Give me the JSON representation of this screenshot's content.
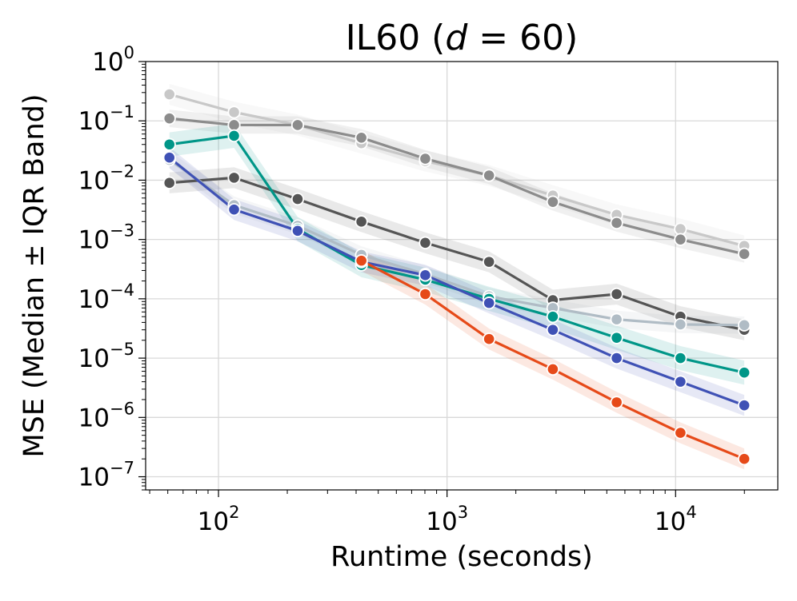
{
  "chart_data": {
    "type": "line",
    "title": "IL60 (",
    "title_var": "d",
    "title_eq": " = 60)",
    "xlabel": "Runtime (seconds)",
    "ylabel": "MSE (Median ± IQR Band)",
    "x_scale": "log",
    "y_scale": "log",
    "xlim": [
      48,
      28000
    ],
    "ylim": [
      6e-08,
      1.0
    ],
    "grid": true,
    "legend": "none",
    "x_ticks": [
      {
        "value": 100,
        "base": "10",
        "exp": "2"
      },
      {
        "value": 1000,
        "base": "10",
        "exp": "3"
      },
      {
        "value": 10000,
        "base": "10",
        "exp": "4"
      }
    ],
    "y_ticks": [
      {
        "value": 1,
        "base": "10",
        "exp": "0"
      },
      {
        "value": 0.1,
        "base": "10",
        "exp": "−1"
      },
      {
        "value": 0.01,
        "base": "10",
        "exp": "−2"
      },
      {
        "value": 0.001,
        "base": "10",
        "exp": "−3"
      },
      {
        "value": 0.0001,
        "base": "10",
        "exp": "−4"
      },
      {
        "value": 1e-05,
        "base": "10",
        "exp": "−5"
      },
      {
        "value": 1e-06,
        "base": "10",
        "exp": "−6"
      },
      {
        "value": 1e-07,
        "base": "10",
        "exp": "−7"
      }
    ],
    "x": [
      61,
      117,
      222,
      422,
      803,
      1527,
      2904,
      5522,
      10502,
      19971
    ],
    "series": [
      {
        "color": "#c8c8c8",
        "band": 1.5,
        "values": [
          0.28,
          0.14,
          0.085,
          0.042,
          0.021,
          0.012,
          0.0055,
          0.0026,
          0.0015,
          0.00078
        ]
      },
      {
        "color": "#8c8c8c",
        "band": 1.4,
        "values": [
          0.11,
          0.085,
          0.085,
          0.052,
          0.023,
          0.012,
          0.0043,
          0.0019,
          0.001,
          0.00057
        ]
      },
      {
        "color": "#555555",
        "band": 1.5,
        "values": [
          0.009,
          0.011,
          0.0048,
          0.002,
          0.00088,
          0.00042,
          9.5e-05,
          0.00012,
          5e-05,
          3e-05
        ]
      },
      {
        "color": "#b0bcc5",
        "band": 1.4,
        "values": [
          0.022,
          0.0038,
          0.0017,
          0.00055,
          0.00026,
          0.00011,
          7e-05,
          4.5e-05,
          3.7e-05,
          3.6e-05
        ]
      },
      {
        "color": "#009688",
        "band": 1.6,
        "values": [
          0.04,
          0.056,
          0.0015,
          0.00037,
          0.00021,
          0.0001,
          5e-05,
          2.2e-05,
          1e-05,
          5.7e-06
        ]
      },
      {
        "color": "#3f51b5",
        "band": 1.5,
        "values": [
          0.024,
          0.0032,
          0.0014,
          0.00042,
          0.00025,
          8.5e-05,
          3e-05,
          1e-05,
          4e-06,
          1.6e-06
        ]
      },
      {
        "color": "#e64a19",
        "band": 1.5,
        "values": [
          null,
          null,
          null,
          0.00044,
          0.00012,
          2.1e-05,
          6.5e-06,
          1.8e-06,
          5.5e-07,
          2e-07
        ]
      }
    ]
  }
}
